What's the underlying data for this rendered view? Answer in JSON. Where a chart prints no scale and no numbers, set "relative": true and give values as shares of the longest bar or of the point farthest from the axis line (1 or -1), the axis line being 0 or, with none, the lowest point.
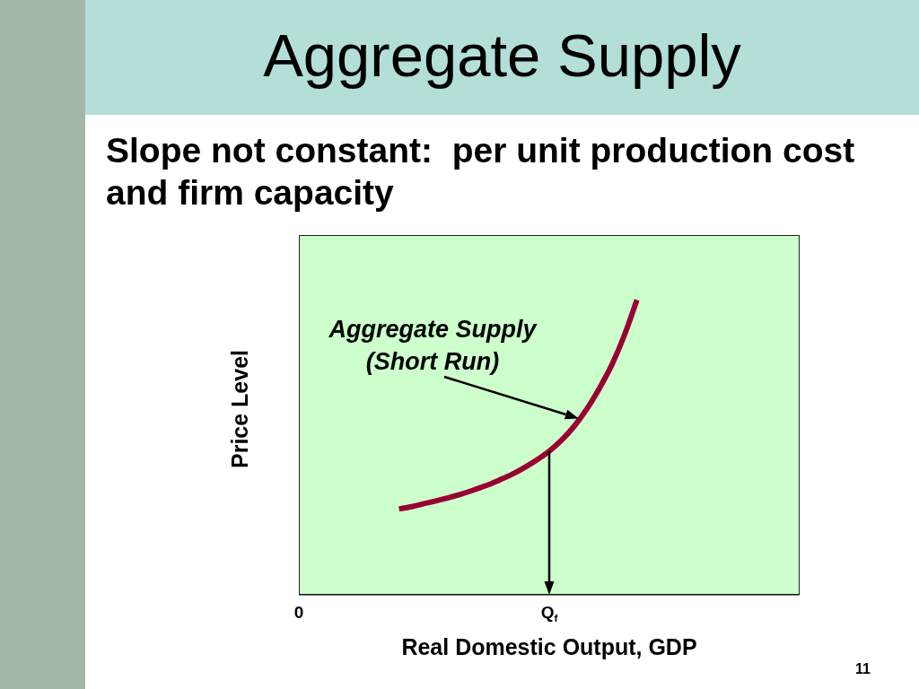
{
  "chart_data": {
    "type": "line",
    "title": "Aggregate Supply",
    "subtitle": "Slope not constant:  per unit production cost and firm capacity",
    "xlabel": "Real Domestic Output, GDP",
    "ylabel": "Price Level",
    "relative": true,
    "categories": [
      "0",
      null,
      null,
      null,
      null,
      null,
      null,
      null,
      null,
      null,
      null,
      null,
      null,
      null,
      null,
      null,
      null,
      null,
      null,
      null,
      "Q$_{f}$",
      null,
      null,
      null,
      null,
      null,
      null,
      null,
      null,
      null,
      null,
      null,
      null,
      null,
      null,
      null,
      null,
      null,
      null,
      null,
      null
    ],
    "series": [
      {
        "color": "#990033",
        "values": [
          null,
          null,
          null,
          null,
          null,
          null,
          null,
          null,
          0.291,
          0.299,
          0.309,
          0.319,
          0.33,
          0.342,
          0.356,
          0.371,
          0.389,
          0.408,
          0.431,
          0.457,
          0.487,
          0.525,
          0.572,
          0.63,
          0.7,
          0.78,
          0.88,
          1,
          null,
          null,
          null,
          null,
          null,
          null,
          null,
          null,
          null,
          null,
          null,
          null,
          null
        ]
      }
    ],
    "annotations": [
      "Aggregate Supply (Short Run)",
      "11"
    ]
  }
}
